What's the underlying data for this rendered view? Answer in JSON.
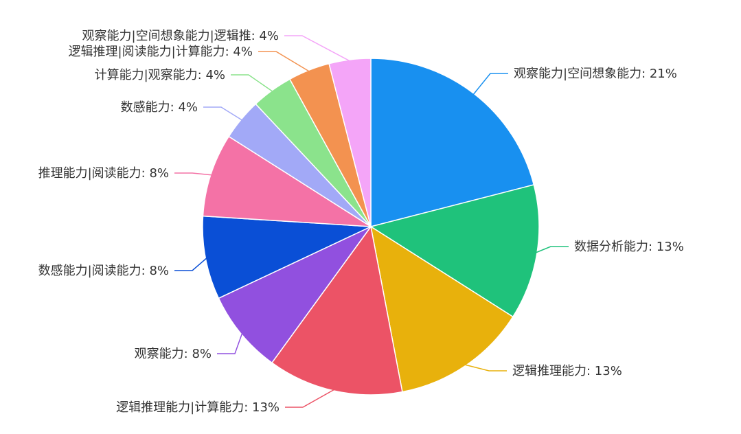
{
  "chart_data": {
    "type": "pie",
    "title": "",
    "slices": [
      {
        "label": "观察能力|空间想象能力",
        "value": 21,
        "color": "#1890f0"
      },
      {
        "label": "数据分析能力",
        "value": 13,
        "color": "#1fc27b"
      },
      {
        "label": "逻辑推理能力",
        "value": 13,
        "color": "#e8b10c"
      },
      {
        "label": "逻辑推理能力|计算能力",
        "value": 13,
        "color": "#ec5366"
      },
      {
        "label": "观察能力",
        "value": 8,
        "color": "#9150df"
      },
      {
        "label": "数感能力|阅读能力",
        "value": 8,
        "color": "#0a4fd6"
      },
      {
        "label": "推理能力|阅读能力",
        "value": 8,
        "color": "#f472a6"
      },
      {
        "label": "数感能力",
        "value": 4,
        "color": "#a2a9f7"
      },
      {
        "label": "计算能力|观察能力",
        "value": 4,
        "color": "#8be38c"
      },
      {
        "label": "逻辑推理|阅读能力|计算能力",
        "value": 4,
        "color": "#f39250"
      },
      {
        "label": "观察能力|空间想象能力|逻辑推",
        "value": 4,
        "color": "#f4a5f8"
      }
    ]
  }
}
